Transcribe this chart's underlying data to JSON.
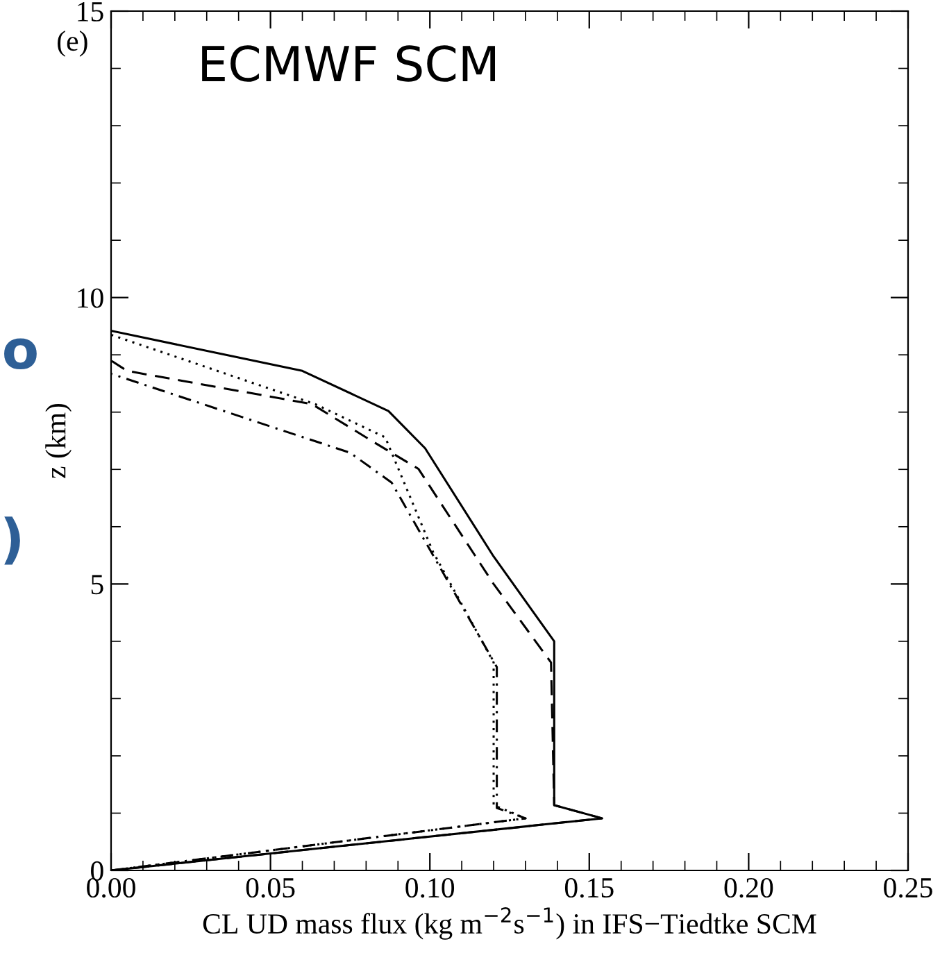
{
  "chart_data": {
    "type": "line",
    "xlabel": "CL UD mass flux (kg m$^{−2}$s$^{−1}$) in IFS−Tiedtke SCM",
    "ylabel": "z (km)",
    "xlim": [
      0,
      0.25
    ],
    "ylim": [
      0,
      15
    ],
    "xticks": [
      {
        "value": 0,
        "label": "0.00"
      },
      {
        "value": 0.05,
        "label": "0.05"
      },
      {
        "value": 0.1,
        "label": "0.10"
      },
      {
        "value": 0.15,
        "label": "0.15"
      },
      {
        "value": 0.2,
        "label": "0.20"
      },
      {
        "value": 0.25,
        "label": "0.25"
      }
    ],
    "yticks": [
      0,
      5,
      10,
      15
    ],
    "grid": false,
    "legend": false,
    "marker": "none",
    "annotations": [
      "(e)",
      "ECMWF SCM",
      "o",
      ")"
    ],
    "series": [
      {
        "color": "#000000",
        "line_style": "solid",
        "x": [
          0,
          0.154,
          0.139,
          0.139,
          0.12,
          0.0985,
          0.087,
          0.06,
          0
        ],
        "values": [
          0,
          0.91,
          1.14,
          4.0,
          5.48,
          7.37,
          8.02,
          8.72,
          9.42
        ]
      },
      {
        "color": "#000000",
        "line_style": "dashed",
        "x": [
          0,
          0.154,
          0.139,
          0.138,
          0.12,
          0.0964,
          0.082,
          0.063,
          0.005,
          0
        ],
        "values": [
          0,
          0.91,
          1.14,
          3.63,
          5.0,
          7.01,
          7.49,
          8.14,
          8.72,
          8.9
        ]
      },
      {
        "color": "#000000",
        "line_style": "dotted",
        "x": [
          0,
          0.13,
          0.12,
          0.12,
          0.101,
          0.086,
          0.064,
          0
        ],
        "values": [
          0,
          0.91,
          1.14,
          3.63,
          5.56,
          7.56,
          8.14,
          9.35
        ]
      },
      {
        "color": "#000000",
        "line_style": "dashdot",
        "x": [
          0,
          0.13,
          0.121,
          0.121,
          0.088,
          0.075,
          0
        ],
        "values": [
          0,
          0.91,
          1.09,
          3.55,
          6.77,
          7.29,
          8.67
        ]
      }
    ]
  }
}
